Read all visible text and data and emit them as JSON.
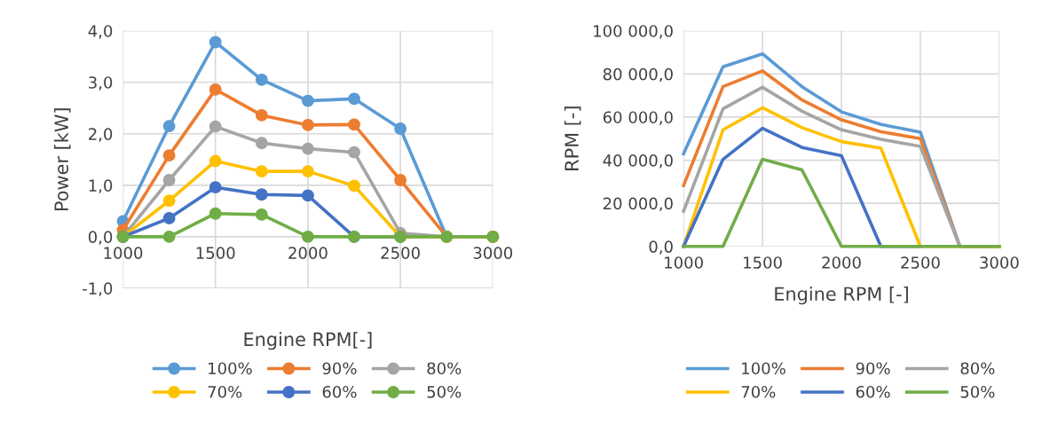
{
  "chart_data": [
    {
      "type": "line",
      "xlabel": "Engine RPM[-]",
      "ylabel": "Power [kW]",
      "marker": "circle",
      "grid": true,
      "legend": "bottom",
      "x": [
        1000,
        1250,
        1500,
        1750,
        2000,
        2250,
        2500,
        2750,
        3000
      ],
      "xlim": [
        1000,
        3000
      ],
      "xticks": [
        1000,
        1500,
        2000,
        2500,
        3000
      ],
      "ylim": [
        -1,
        4
      ],
      "yticks": [
        {
          "value": -1,
          "label": "-1,0"
        },
        {
          "value": 0,
          "label": "0,0"
        },
        {
          "value": 1,
          "label": "1,0"
        },
        {
          "value": 2,
          "label": "2,0"
        },
        {
          "value": 3,
          "label": "3,0"
        },
        {
          "value": 4,
          "label": "4,0"
        }
      ],
      "series": [
        {
          "name": "100%",
          "color": "#5b9bd5",
          "values": [
            0.3,
            2.15,
            3.78,
            3.05,
            2.64,
            2.68,
            2.1,
            0,
            0
          ]
        },
        {
          "name": "90%",
          "color": "#ed7d31",
          "values": [
            0.13,
            1.58,
            2.86,
            2.36,
            2.17,
            2.18,
            1.1,
            0,
            0
          ]
        },
        {
          "name": "80%",
          "color": "#a5a5a5",
          "values": [
            0,
            1.1,
            2.14,
            1.82,
            1.71,
            1.64,
            0.07,
            0,
            0
          ]
        },
        {
          "name": "70%",
          "color": "#ffc000",
          "values": [
            0,
            0.7,
            1.47,
            1.27,
            1.27,
            0.99,
            0,
            0,
            0
          ]
        },
        {
          "name": "60%",
          "color": "#4472c4",
          "values": [
            0,
            0.36,
            0.96,
            0.82,
            0.8,
            0,
            0,
            null,
            null
          ]
        },
        {
          "name": "50%",
          "color": "#70ad47",
          "values": [
            0,
            0,
            0.45,
            0.43,
            0,
            0,
            0,
            0,
            0
          ]
        }
      ]
    },
    {
      "type": "line",
      "xlabel": "Engine RPM [-]",
      "ylabel": "RPM [-]",
      "grid": true,
      "legend": "bottom",
      "x": [
        1000,
        1250,
        1500,
        1750,
        2000,
        2250,
        2500,
        2750,
        3000
      ],
      "xlim": [
        1000,
        3000
      ],
      "xticks": [
        1000,
        1500,
        2000,
        2500,
        3000
      ],
      "ylim": [
        0,
        100000
      ],
      "yticks": [
        {
          "value": 0,
          "label": "0,0"
        },
        {
          "value": 20000,
          "label": "20 000,0"
        },
        {
          "value": 40000,
          "label": "40 000,0"
        },
        {
          "value": 60000,
          "label": "60 000,0"
        },
        {
          "value": 80000,
          "label": "80 000,0"
        },
        {
          "value": 100000,
          "label": "100 000,0"
        }
      ],
      "series": [
        {
          "name": "100%",
          "color": "#5b9bd5",
          "values": [
            43000,
            83300,
            89300,
            74100,
            62400,
            56600,
            53000,
            0,
            0
          ]
        },
        {
          "name": "90%",
          "color": "#ed7d31",
          "values": [
            28200,
            74100,
            81400,
            67900,
            58700,
            53200,
            50000,
            0,
            0
          ]
        },
        {
          "name": "80%",
          "color": "#a5a5a5",
          "values": [
            16300,
            63800,
            73800,
            62700,
            54100,
            49700,
            46400,
            0,
            0
          ]
        },
        {
          "name": "70%",
          "color": "#ffc000",
          "values": [
            0,
            54100,
            64300,
            55100,
            48600,
            45600,
            0,
            0,
            0
          ]
        },
        {
          "name": "60%",
          "color": "#4472c4",
          "values": [
            0,
            40400,
            54800,
            45900,
            42100,
            0,
            0,
            null,
            null
          ]
        },
        {
          "name": "50%",
          "color": "#70ad47",
          "values": [
            0,
            0,
            40400,
            35500,
            0,
            0,
            0,
            0,
            0
          ]
        }
      ]
    }
  ]
}
